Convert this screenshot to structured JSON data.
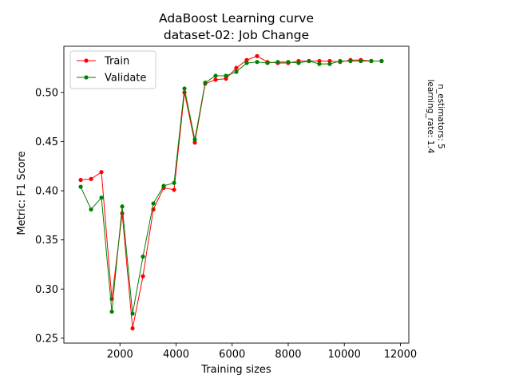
{
  "chart_data": {
    "type": "line",
    "title": "AdaBoost Learning curve",
    "subtitle": "dataset-02: Job Change",
    "xlabel": "Training sizes",
    "ylabel": "Metric: F1 Score",
    "xlim": [
      0,
      12300
    ],
    "ylim": [
      0.245,
      0.547
    ],
    "xticks": [
      2000,
      4000,
      6000,
      8000,
      10000,
      12000
    ],
    "xtick_labels": [
      "2000",
      "4000",
      "6000",
      "8000",
      "10000",
      "12000"
    ],
    "yticks": [
      0.25,
      0.3,
      0.35,
      0.4,
      0.45,
      0.5
    ],
    "ytick_labels": [
      "0.25",
      "0.30",
      "0.35",
      "0.40",
      "0.45",
      "0.50"
    ],
    "legend_position": "upper-left",
    "side_note": [
      "n_estimators: 5",
      "learning_rate: 1.4"
    ],
    "x": [
      600,
      970,
      1340,
      1710,
      2080,
      2450,
      2820,
      3190,
      3560,
      3930,
      4300,
      4670,
      5040,
      5410,
      5780,
      6150,
      6520,
      6890,
      7260,
      7630,
      8000,
      8370,
      8740,
      9110,
      9480,
      9850,
      10220,
      10590,
      10960,
      11330
    ],
    "series": [
      {
        "name": "Train",
        "color": "#ff0000",
        "values": [
          0.411,
          0.412,
          0.419,
          0.29,
          0.377,
          0.26,
          0.313,
          0.381,
          0.403,
          0.401,
          0.5,
          0.449,
          0.509,
          0.513,
          0.514,
          0.525,
          0.533,
          0.537,
          0.531,
          0.53,
          0.53,
          0.532,
          0.532,
          0.532,
          0.532,
          0.531,
          0.533,
          0.533,
          0.532,
          0.532
        ]
      },
      {
        "name": "Validate",
        "color": "#008000",
        "values": [
          0.404,
          0.381,
          0.393,
          0.277,
          0.384,
          0.275,
          0.333,
          0.387,
          0.405,
          0.408,
          0.504,
          0.452,
          0.51,
          0.517,
          0.517,
          0.521,
          0.53,
          0.531,
          0.53,
          0.531,
          0.531,
          0.53,
          0.532,
          0.529,
          0.529,
          0.532,
          0.532,
          0.532,
          0.532,
          0.532
        ]
      }
    ]
  }
}
